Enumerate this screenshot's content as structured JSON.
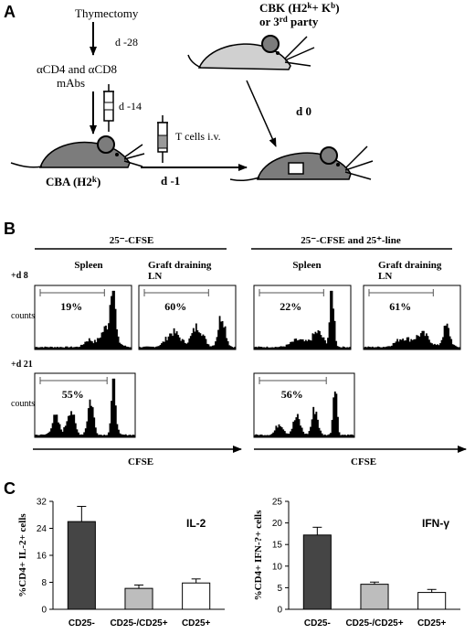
{
  "panel_a": {
    "letter": "A",
    "thymectomy": "Thymectomy",
    "day_minus28": "d -28",
    "mabs_line1": "αCD4 and αCD8",
    "mabs_line2": "mAbs",
    "day_minus14": "d -14",
    "tcells": "T cells i.v.",
    "day_minus1": "d -1",
    "recipient": "CBA (H2",
    "recipient_sup": "k",
    "recipient_end": ")",
    "donor_line1": "CBK (H2",
    "donor_sup1": "k",
    "donor_mid": "+ K",
    "donor_sup2": "b",
    "donor_end": ")",
    "donor_line2": "or 3",
    "donor_sup3": "rd",
    "donor_line2_end": " party",
    "day_0": "d 0"
  },
  "panel_b": {
    "letter": "B",
    "group_left": "25⁻-CFSE",
    "group_right": "25⁻-CFSE and 25⁺-line",
    "col_spleen": "Spleen",
    "col_graft_1": "Graft draining",
    "col_graft_2": "LN",
    "row_d8": "+d 8",
    "row_d21": "+d 21",
    "ylabel": "counts",
    "xlabel": "CFSE",
    "percents": {
      "left_d8_spleen": "19%",
      "left_d8_ln": "60%",
      "right_d8_spleen": "22%",
      "right_d8_ln": "61%",
      "left_d21_spleen": "55%",
      "right_d21_spleen": "56%"
    }
  },
  "panel_c": {
    "letter": "C",
    "colors": {
      "dark": "#454545",
      "mid": "#bdbdbd",
      "light": "#ffffff"
    }
  },
  "chart_data": [
    {
      "type": "bar",
      "title": "IL-2",
      "ylabel": "%CD4+ IL-2+ cells",
      "categories": [
        "CD25-",
        "CD25-/CD25+",
        "CD25+"
      ],
      "values": [
        26,
        6.2,
        7.8
      ],
      "errors": [
        4.5,
        1.0,
        1.2
      ],
      "ylim": [
        0,
        32
      ],
      "yticks": [
        0,
        8,
        16,
        24,
        32
      ],
      "ytick_labels": [
        "0",
        "8",
        "16",
        "24",
        "32"
      ]
    },
    {
      "type": "bar",
      "title": "IFN-γ",
      "ylabel": "%CD4+ IFN-?+ cells",
      "categories": [
        "CD25-",
        "CD25-/CD25+",
        "CD25+"
      ],
      "values": [
        17.2,
        5.8,
        3.9
      ],
      "errors": [
        1.8,
        0.5,
        0.7
      ],
      "ylim": [
        0,
        25
      ],
      "yticks": [
        0,
        5,
        10,
        15,
        20,
        25
      ],
      "ytick_labels": [
        "0",
        "5",
        "10",
        "15",
        "20",
        "25"
      ]
    }
  ]
}
